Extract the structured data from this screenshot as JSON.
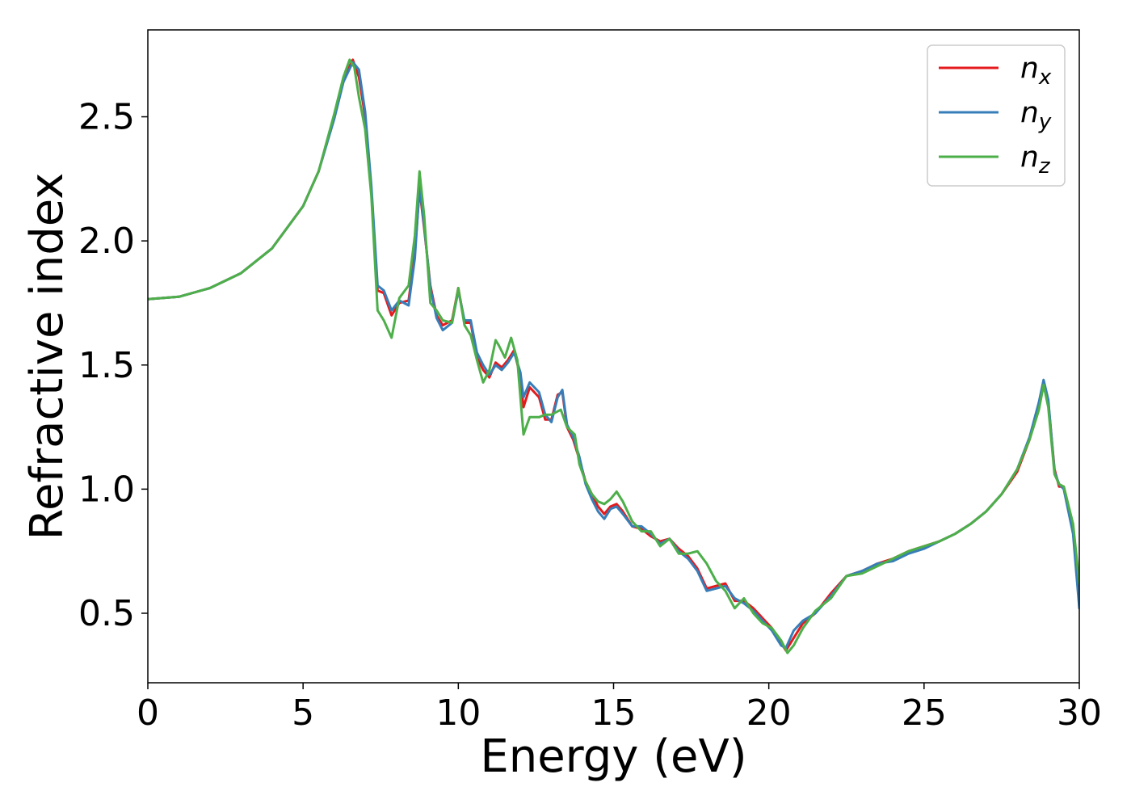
{
  "chart_data": {
    "type": "line",
    "xlabel": "Energy (eV)",
    "ylabel": "Refractive index",
    "xlim": [
      0,
      30
    ],
    "ylim": [
      0.22,
      2.85
    ],
    "xticks": [
      0,
      5,
      10,
      15,
      20,
      25,
      30
    ],
    "xtick_labels": [
      "0",
      "5",
      "10",
      "15",
      "20",
      "25",
      "30"
    ],
    "yticks": [
      0.5,
      1.0,
      1.5,
      2.0,
      2.5
    ],
    "ytick_labels": [
      "0.5",
      "1.0",
      "1.5",
      "2.0",
      "2.5"
    ],
    "grid": false,
    "legend_position": "top-right",
    "series": [
      {
        "name": "n",
        "sub": "x",
        "color": "#e41a1c",
        "x": [
          0,
          1,
          2,
          3,
          4,
          5,
          5.5,
          6,
          6.3,
          6.6,
          6.8,
          7.0,
          7.2,
          7.4,
          7.6,
          7.85,
          8.1,
          8.4,
          8.6,
          8.75,
          8.9,
          9.1,
          9.3,
          9.5,
          9.8,
          10.0,
          10.2,
          10.4,
          10.6,
          10.8,
          11.0,
          11.2,
          11.4,
          11.6,
          11.8,
          12.0,
          12.1,
          12.3,
          12.6,
          12.8,
          13.0,
          13.2,
          13.35,
          13.5,
          13.7,
          13.9,
          14.1,
          14.3,
          14.5,
          14.7,
          14.9,
          15.1,
          15.3,
          15.6,
          15.9,
          16.2,
          16.5,
          16.8,
          17.1,
          17.4,
          17.7,
          18.0,
          18.3,
          18.6,
          18.9,
          19.2,
          19.5,
          19.8,
          20.1,
          20.4,
          20.55,
          20.8,
          21.1,
          21.5,
          22.0,
          22.5,
          23.0,
          23.5,
          24.0,
          24.5,
          25.0,
          25.5,
          26.0,
          26.5,
          27.0,
          27.5,
          28.0,
          28.4,
          28.7,
          28.85,
          29.0,
          29.2,
          29.35,
          29.5,
          29.8,
          30.0
        ],
        "y": [
          1.765,
          1.775,
          1.81,
          1.87,
          1.97,
          2.14,
          2.28,
          2.5,
          2.65,
          2.73,
          2.66,
          2.5,
          2.2,
          1.8,
          1.79,
          1.7,
          1.75,
          1.76,
          1.95,
          2.21,
          2.05,
          1.82,
          1.7,
          1.66,
          1.68,
          1.81,
          1.67,
          1.67,
          1.53,
          1.48,
          1.45,
          1.51,
          1.49,
          1.52,
          1.56,
          1.45,
          1.33,
          1.41,
          1.37,
          1.28,
          1.28,
          1.38,
          1.39,
          1.25,
          1.2,
          1.12,
          1.03,
          0.98,
          0.93,
          0.9,
          0.93,
          0.94,
          0.91,
          0.85,
          0.84,
          0.81,
          0.79,
          0.8,
          0.76,
          0.73,
          0.68,
          0.6,
          0.61,
          0.62,
          0.55,
          0.55,
          0.52,
          0.48,
          0.44,
          0.38,
          0.35,
          0.4,
          0.46,
          0.5,
          0.58,
          0.65,
          0.67,
          0.7,
          0.72,
          0.75,
          0.77,
          0.79,
          0.82,
          0.86,
          0.91,
          0.98,
          1.07,
          1.2,
          1.34,
          1.43,
          1.35,
          1.08,
          1.01,
          1.01,
          0.85,
          0.55
        ]
      },
      {
        "name": "n",
        "sub": "y",
        "color": "#377eb8",
        "x": [
          0,
          1,
          2,
          3,
          4,
          5,
          5.5,
          6,
          6.3,
          6.6,
          6.8,
          7.0,
          7.2,
          7.4,
          7.6,
          7.85,
          8.1,
          8.4,
          8.6,
          8.75,
          8.9,
          9.1,
          9.3,
          9.5,
          9.8,
          10.0,
          10.2,
          10.4,
          10.6,
          10.8,
          11.0,
          11.2,
          11.4,
          11.6,
          11.8,
          12.0,
          12.1,
          12.3,
          12.6,
          12.8,
          13.0,
          13.2,
          13.35,
          13.5,
          13.7,
          13.9,
          14.1,
          14.3,
          14.5,
          14.7,
          14.9,
          15.1,
          15.3,
          15.6,
          15.9,
          16.2,
          16.5,
          16.8,
          17.1,
          17.4,
          17.7,
          18.0,
          18.3,
          18.6,
          18.9,
          19.2,
          19.5,
          19.8,
          20.1,
          20.4,
          20.55,
          20.8,
          21.1,
          21.5,
          22.0,
          22.5,
          23.0,
          23.5,
          24.0,
          24.5,
          25.0,
          25.5,
          26.0,
          26.5,
          27.0,
          27.5,
          28.0,
          28.4,
          28.7,
          28.85,
          29.0,
          29.2,
          29.35,
          29.5,
          29.8,
          30.0
        ],
        "y": [
          1.765,
          1.775,
          1.81,
          1.87,
          1.97,
          2.14,
          2.28,
          2.49,
          2.64,
          2.72,
          2.69,
          2.52,
          2.22,
          1.82,
          1.8,
          1.72,
          1.76,
          1.74,
          1.93,
          2.22,
          2.06,
          1.81,
          1.69,
          1.64,
          1.67,
          1.8,
          1.68,
          1.68,
          1.55,
          1.5,
          1.46,
          1.5,
          1.48,
          1.51,
          1.55,
          1.47,
          1.37,
          1.43,
          1.39,
          1.3,
          1.27,
          1.37,
          1.4,
          1.26,
          1.21,
          1.13,
          1.02,
          0.96,
          0.91,
          0.88,
          0.92,
          0.93,
          0.9,
          0.85,
          0.85,
          0.82,
          0.78,
          0.8,
          0.75,
          0.72,
          0.67,
          0.59,
          0.6,
          0.61,
          0.56,
          0.54,
          0.51,
          0.47,
          0.43,
          0.37,
          0.36,
          0.43,
          0.47,
          0.5,
          0.57,
          0.65,
          0.67,
          0.7,
          0.71,
          0.74,
          0.76,
          0.79,
          0.82,
          0.86,
          0.91,
          0.98,
          1.08,
          1.21,
          1.35,
          1.44,
          1.36,
          1.07,
          1.02,
          1.0,
          0.82,
          0.52
        ]
      },
      {
        "name": "n",
        "sub": "z",
        "color": "#4daf4a",
        "x": [
          0,
          1,
          2,
          3,
          4,
          5,
          5.5,
          6,
          6.3,
          6.5,
          6.65,
          6.8,
          7.0,
          7.2,
          7.4,
          7.6,
          7.85,
          8.1,
          8.4,
          8.6,
          8.75,
          8.9,
          9.1,
          9.3,
          9.5,
          9.8,
          10.0,
          10.2,
          10.4,
          10.6,
          10.8,
          11.0,
          11.2,
          11.3,
          11.5,
          11.7,
          11.9,
          12.1,
          12.3,
          12.6,
          12.8,
          13.0,
          13.3,
          13.5,
          13.75,
          13.9,
          14.1,
          14.3,
          14.5,
          14.7,
          14.9,
          15.1,
          15.3,
          15.6,
          15.9,
          16.2,
          16.5,
          16.8,
          17.1,
          17.4,
          17.7,
          18.0,
          18.3,
          18.6,
          18.9,
          19.2,
          19.5,
          19.8,
          20.1,
          20.4,
          20.6,
          20.8,
          21.1,
          21.5,
          22.0,
          22.5,
          23.0,
          23.5,
          24.0,
          24.5,
          25.0,
          25.5,
          26.0,
          26.5,
          27.0,
          27.5,
          28.0,
          28.4,
          28.7,
          28.85,
          29.0,
          29.2,
          29.35,
          29.5,
          29.8,
          30.0
        ],
        "y": [
          1.765,
          1.775,
          1.81,
          1.87,
          1.97,
          2.14,
          2.28,
          2.51,
          2.66,
          2.73,
          2.7,
          2.58,
          2.45,
          2.18,
          1.72,
          1.68,
          1.61,
          1.77,
          1.82,
          2.02,
          2.28,
          2.1,
          1.75,
          1.72,
          1.68,
          1.67,
          1.81,
          1.66,
          1.62,
          1.52,
          1.43,
          1.48,
          1.6,
          1.58,
          1.53,
          1.61,
          1.52,
          1.22,
          1.29,
          1.29,
          1.3,
          1.3,
          1.32,
          1.25,
          1.22,
          1.1,
          1.03,
          0.98,
          0.95,
          0.94,
          0.96,
          0.99,
          0.95,
          0.87,
          0.83,
          0.83,
          0.77,
          0.8,
          0.74,
          0.74,
          0.75,
          0.7,
          0.63,
          0.59,
          0.52,
          0.56,
          0.5,
          0.46,
          0.44,
          0.39,
          0.34,
          0.37,
          0.44,
          0.51,
          0.56,
          0.65,
          0.66,
          0.69,
          0.72,
          0.75,
          0.77,
          0.79,
          0.82,
          0.86,
          0.91,
          0.98,
          1.08,
          1.2,
          1.32,
          1.42,
          1.33,
          1.06,
          1.02,
          1.01,
          0.86,
          0.62
        ]
      }
    ]
  }
}
